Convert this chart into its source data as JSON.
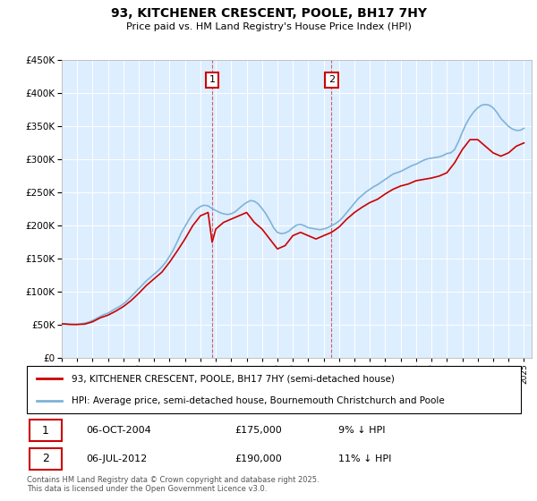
{
  "title": "93, KITCHENER CRESCENT, POOLE, BH17 7HY",
  "subtitle": "Price paid vs. HM Land Registry's House Price Index (HPI)",
  "ylim": [
    0,
    450000
  ],
  "yticks": [
    0,
    50000,
    100000,
    150000,
    200000,
    250000,
    300000,
    350000,
    400000,
    450000
  ],
  "xlim_start": 1995.0,
  "xlim_end": 2025.5,
  "marker1_x": 2004.76,
  "marker1_y": 175000,
  "marker1_label": "1",
  "marker1_date": "06-OCT-2004",
  "marker1_price": "£175,000",
  "marker1_hpi": "9% ↓ HPI",
  "marker2_x": 2012.51,
  "marker2_y": 190000,
  "marker2_label": "2",
  "marker2_date": "06-JUL-2012",
  "marker2_price": "£190,000",
  "marker2_hpi": "11% ↓ HPI",
  "hpi_color": "#7fb3d8",
  "price_color": "#cc0000",
  "plot_bg_color": "#ddeeff",
  "grid_color": "#ffffff",
  "legend_label_price": "93, KITCHENER CRESCENT, POOLE, BH17 7HY (semi-detached house)",
  "legend_label_hpi": "HPI: Average price, semi-detached house, Bournemouth Christchurch and Poole",
  "footer": "Contains HM Land Registry data © Crown copyright and database right 2025.\nThis data is licensed under the Open Government Licence v3.0.",
  "hpi_data_x": [
    1995.0,
    1995.25,
    1995.5,
    1995.75,
    1996.0,
    1996.25,
    1996.5,
    1996.75,
    1997.0,
    1997.25,
    1997.5,
    1997.75,
    1998.0,
    1998.25,
    1998.5,
    1998.75,
    1999.0,
    1999.25,
    1999.5,
    1999.75,
    2000.0,
    2000.25,
    2000.5,
    2000.75,
    2001.0,
    2001.25,
    2001.5,
    2001.75,
    2002.0,
    2002.25,
    2002.5,
    2002.75,
    2003.0,
    2003.25,
    2003.5,
    2003.75,
    2004.0,
    2004.25,
    2004.5,
    2004.75,
    2005.0,
    2005.25,
    2005.5,
    2005.75,
    2006.0,
    2006.25,
    2006.5,
    2006.75,
    2007.0,
    2007.25,
    2007.5,
    2007.75,
    2008.0,
    2008.25,
    2008.5,
    2008.75,
    2009.0,
    2009.25,
    2009.5,
    2009.75,
    2010.0,
    2010.25,
    2010.5,
    2010.75,
    2011.0,
    2011.25,
    2011.5,
    2011.75,
    2012.0,
    2012.25,
    2012.5,
    2012.75,
    2013.0,
    2013.25,
    2013.5,
    2013.75,
    2014.0,
    2014.25,
    2014.5,
    2014.75,
    2015.0,
    2015.25,
    2015.5,
    2015.75,
    2016.0,
    2016.25,
    2016.5,
    2016.75,
    2017.0,
    2017.25,
    2017.5,
    2017.75,
    2018.0,
    2018.25,
    2018.5,
    2018.75,
    2019.0,
    2019.25,
    2019.5,
    2019.75,
    2020.0,
    2020.25,
    2020.5,
    2020.75,
    2021.0,
    2021.25,
    2021.5,
    2021.75,
    2022.0,
    2022.25,
    2022.5,
    2022.75,
    2023.0,
    2023.25,
    2023.5,
    2023.75,
    2024.0,
    2024.25,
    2024.5,
    2024.75,
    2025.0
  ],
  "hpi_data_y": [
    52000,
    52000,
    51500,
    51000,
    51000,
    52000,
    53000,
    54500,
    57000,
    60000,
    63000,
    66000,
    68000,
    71500,
    75000,
    78000,
    82000,
    87000,
    93000,
    99000,
    105000,
    111000,
    117000,
    122000,
    127000,
    132000,
    138000,
    145000,
    154000,
    164000,
    176000,
    189000,
    199000,
    209000,
    218000,
    225000,
    229000,
    231000,
    230000,
    226000,
    223000,
    220000,
    218000,
    217000,
    218000,
    221000,
    226000,
    231000,
    235000,
    238000,
    237000,
    233000,
    226000,
    218000,
    208000,
    197000,
    190000,
    188000,
    189000,
    192000,
    197000,
    201000,
    202000,
    200000,
    197000,
    196000,
    195000,
    194000,
    195000,
    197000,
    200000,
    203000,
    207000,
    213000,
    220000,
    227000,
    234000,
    241000,
    246000,
    251000,
    255000,
    259000,
    262000,
    266000,
    270000,
    274000,
    278000,
    280000,
    282000,
    285000,
    288000,
    291000,
    293000,
    296000,
    299000,
    301000,
    302000,
    303000,
    304000,
    306000,
    309000,
    310000,
    315000,
    327000,
    341000,
    354000,
    364000,
    372000,
    378000,
    382000,
    383000,
    382000,
    378000,
    371000,
    362000,
    356000,
    350000,
    346000,
    344000,
    344000,
    347000
  ],
  "price_data_x": [
    1995.0,
    1995.5,
    1996.0,
    1996.5,
    1997.0,
    1997.5,
    1998.0,
    1998.5,
    1999.0,
    1999.5,
    2000.0,
    2000.5,
    2001.0,
    2001.5,
    2002.0,
    2002.5,
    2003.0,
    2003.5,
    2004.0,
    2004.5,
    2004.76,
    2005.0,
    2005.5,
    2006.0,
    2006.5,
    2007.0,
    2007.5,
    2008.0,
    2008.5,
    2009.0,
    2009.5,
    2010.0,
    2010.5,
    2011.0,
    2011.5,
    2012.0,
    2012.51,
    2013.0,
    2013.5,
    2014.0,
    2014.5,
    2015.0,
    2015.5,
    2016.0,
    2016.5,
    2017.0,
    2017.5,
    2018.0,
    2018.5,
    2019.0,
    2019.5,
    2020.0,
    2020.5,
    2021.0,
    2021.5,
    2022.0,
    2022.5,
    2023.0,
    2023.5,
    2024.0,
    2024.5,
    2025.0
  ],
  "price_data_y": [
    52000,
    51000,
    51000,
    51500,
    55000,
    61000,
    65000,
    71000,
    78000,
    87000,
    98000,
    110000,
    120000,
    130000,
    145000,
    162000,
    180000,
    200000,
    215000,
    220000,
    175000,
    195000,
    205000,
    210000,
    215000,
    220000,
    205000,
    195000,
    180000,
    165000,
    170000,
    185000,
    190000,
    185000,
    180000,
    185000,
    190000,
    198000,
    210000,
    220000,
    228000,
    235000,
    240000,
    248000,
    255000,
    260000,
    263000,
    268000,
    270000,
    272000,
    275000,
    280000,
    295000,
    315000,
    330000,
    330000,
    320000,
    310000,
    305000,
    310000,
    320000,
    325000
  ]
}
